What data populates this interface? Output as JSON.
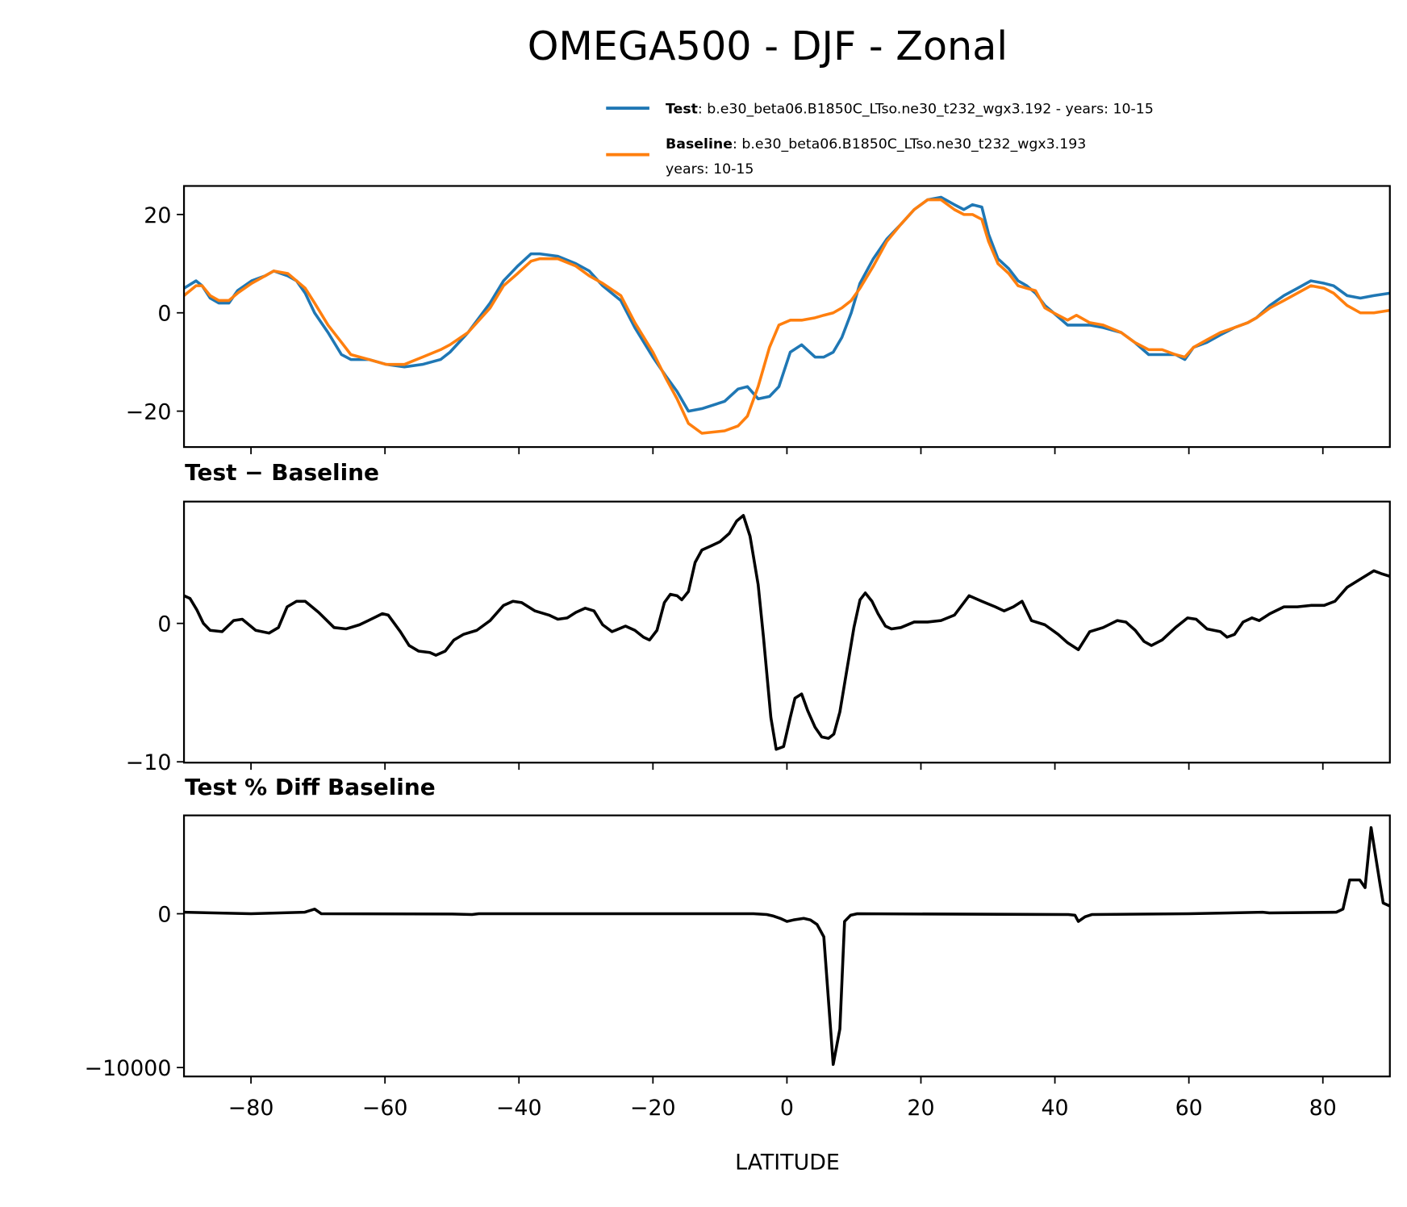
{
  "chart_data": [
    {
      "type": "line",
      "title": "OMEGA500 - DJF - Zonal",
      "xlim": [
        -90,
        90
      ],
      "ylim": [
        -27.3,
        25.8
      ],
      "yticks": [
        -20,
        0,
        20
      ],
      "xticks": [
        -80,
        -60,
        -40,
        -20,
        0,
        20,
        40,
        60,
        80
      ],
      "grid": false,
      "legend_placement": "top-right",
      "legend": [
        {
          "bold": "Test",
          "text": ": b.e30_beta06.B1850C_LTso.ne30_t232_wgx3.192 - years: 10-15",
          "color": "#1f77b4"
        },
        {
          "bold": "Baseline",
          "text": ": b.e30_beta06.B1850C_LTso.ne30_t232_wgx3.193",
          "text2": "years: 10-15",
          "color": "#ff7f0e"
        }
      ],
      "x": [
        -90,
        -88.2,
        -87.3,
        -86.1,
        -84.8,
        -83.3,
        -82,
        -79.9,
        -77.9,
        -76.6,
        -74.5,
        -73.2,
        -71.9,
        -70.5,
        -68.5,
        -66.5,
        -65.1,
        -62.4,
        -59.8,
        -57.1,
        -54.4,
        -51.7,
        -50.3,
        -47.6,
        -44.3,
        -42.3,
        -40.2,
        -38.2,
        -36.9,
        -34.2,
        -31.5,
        -29.5,
        -27.5,
        -24.8,
        -22.7,
        -20,
        -18,
        -16.4,
        -14.7,
        -12.7,
        -9.3,
        -7.3,
        -5.9,
        -4.3,
        -2.6,
        -1.2,
        0.5,
        2.2,
        4.2,
        5.5,
        6.9,
        8.2,
        9.6,
        10.9,
        12.9,
        14.9,
        17,
        19,
        21,
        23,
        25,
        26.4,
        27.7,
        29.1,
        30.1,
        31.5,
        33.1,
        34.5,
        35.8,
        37.1,
        38.5,
        39.8,
        41.9,
        43.2,
        45.2,
        47.2,
        49.9,
        51.9,
        54,
        56,
        58,
        59.4,
        60.7,
        62.7,
        64.7,
        66.8,
        68.8,
        70.1,
        72.1,
        74.2,
        76.2,
        78.2,
        80.2,
        81.6,
        83.6,
        85.6,
        87.6,
        90
      ],
      "series": [
        {
          "name": "Test",
          "color": "#1f77b4",
          "values": [
            5,
            6.5,
            5.5,
            3,
            2,
            2,
            4.5,
            6.5,
            7.5,
            8.5,
            7.5,
            6.5,
            4,
            0,
            -4,
            -8.5,
            -9.5,
            -9.5,
            -10.5,
            -11,
            -10.5,
            -9.5,
            -8,
            -4,
            2,
            6.5,
            9.5,
            12,
            12,
            11.5,
            10,
            8.5,
            5.5,
            2.5,
            -3,
            -9,
            -13,
            -16,
            -20,
            -19.5,
            -18,
            -15.5,
            -15,
            -17.5,
            -17,
            -15,
            -8,
            -6.5,
            -9,
            -9,
            -8,
            -5,
            0,
            6,
            11,
            15,
            18,
            21,
            23,
            23.5,
            22,
            21,
            22,
            21.5,
            16,
            11,
            9,
            6.5,
            5.5,
            4,
            1.5,
            0,
            -2.5,
            -2.5,
            -2.5,
            -3,
            -4,
            -6,
            -8.5,
            -8.5,
            -8.5,
            -9.5,
            -7,
            -6,
            -4.5,
            -3,
            -2,
            -1,
            1.5,
            3.5,
            5,
            6.5,
            6,
            5.5,
            3.5,
            3,
            3.5,
            4
          ]
        },
        {
          "name": "Baseline",
          "color": "#ff7f0e",
          "values": [
            3.5,
            5.5,
            5.5,
            3.5,
            2.5,
            2.5,
            4,
            6,
            7.5,
            8.5,
            8,
            6.5,
            5,
            2,
            -2.5,
            -6,
            -8.5,
            -9.5,
            -10.5,
            -10.5,
            -9,
            -7.5,
            -6.5,
            -4,
            1,
            5.5,
            8,
            10.5,
            11,
            11,
            9.5,
            7.5,
            6,
            3.5,
            -2,
            -8,
            -13.5,
            -17.5,
            -22.5,
            -24.5,
            -24,
            -23,
            -21,
            -15,
            -7,
            -2.5,
            -1.5,
            -1.5,
            -1,
            -0.5,
            0,
            1,
            2.5,
            5,
            9.5,
            14.5,
            18,
            21,
            23,
            23,
            21,
            20,
            20,
            19,
            14.5,
            10,
            8,
            5.5,
            5,
            4.5,
            1,
            0,
            -1.5,
            -0.5,
            -2,
            -2.5,
            -4,
            -6,
            -7.5,
            -7.5,
            -8.5,
            -9,
            -7,
            -5.5,
            -4,
            -3,
            -2,
            -1,
            1,
            2.5,
            4,
            5.5,
            5,
            4,
            1.5,
            0,
            0,
            0.5
          ]
        }
      ]
    },
    {
      "type": "line",
      "title": "Test − Baseline",
      "xlim": [
        -90,
        90
      ],
      "ylim": [
        -10.06,
        8.8
      ],
      "yticks": [
        -10,
        0
      ],
      "grid": false,
      "x": [
        -90,
        -89.1,
        -88.1,
        -87.1,
        -86.1,
        -84.3,
        -82.6,
        -81.3,
        -79.3,
        -77.3,
        -75.9,
        -74.6,
        -73.2,
        -71.9,
        -69.9,
        -67.6,
        -65.8,
        -63.8,
        -62.5,
        -60.4,
        -59.5,
        -57.7,
        -56.4,
        -55,
        -53.3,
        -52.4,
        -51,
        -49.7,
        -48.3,
        -46.3,
        -44.3,
        -42.3,
        -40.9,
        -39.6,
        -37.6,
        -35.5,
        -34.2,
        -32.8,
        -31.5,
        -30.1,
        -28.8,
        -27.5,
        -26.1,
        -24.1,
        -22.7,
        -21.4,
        -20.5,
        -19.4,
        -18.3,
        -17.4,
        -16.4,
        -15.7,
        -14.7,
        -13.7,
        -12.7,
        -11.3,
        -10,
        -8.6,
        -7.5,
        -6.5,
        -5.5,
        -4.3,
        -3.5,
        -2.4,
        -1.6,
        -0.5,
        0.5,
        1.2,
        2.2,
        3.1,
        4.2,
        5.2,
        6.2,
        7,
        7.9,
        8.9,
        10,
        10.9,
        11.7,
        12.7,
        13.6,
        14.7,
        15.6,
        17,
        19,
        21,
        23,
        25,
        27.2,
        29.1,
        31.1,
        32.4,
        33.8,
        35.1,
        36.5,
        38.5,
        40.5,
        41.9,
        43.5,
        45.2,
        47.2,
        49.3,
        50.6,
        52,
        53.3,
        54.4,
        56,
        58,
        59.8,
        61.1,
        62.7,
        64.7,
        65.7,
        66.8,
        68.1,
        69.4,
        70.5,
        72.1,
        74.2,
        76.2,
        78.2,
        80.2,
        81.8,
        83.6,
        85.6,
        87.6,
        88.7,
        90
      ],
      "values": [
        2,
        1.8,
        1,
        0,
        -0.5,
        -0.6,
        0.2,
        0.3,
        -0.5,
        -0.7,
        -0.3,
        1.2,
        1.6,
        1.6,
        0.8,
        -0.3,
        -0.4,
        -0.1,
        0.2,
        0.7,
        0.6,
        -0.6,
        -1.6,
        -2,
        -2.1,
        -2.3,
        -2,
        -1.2,
        -0.8,
        -0.5,
        0.2,
        1.3,
        1.6,
        1.5,
        0.9,
        0.6,
        0.3,
        0.4,
        0.8,
        1.1,
        0.9,
        -0.1,
        -0.6,
        -0.2,
        -0.5,
        -1,
        -1.2,
        -0.5,
        1.5,
        2.1,
        2,
        1.7,
        2.3,
        4.4,
        5.3,
        5.6,
        5.9,
        6.5,
        7.4,
        7.8,
        6.3,
        2.8,
        -1,
        -6.8,
        -9.1,
        -8.9,
        -6.8,
        -5.4,
        -5.1,
        -6.3,
        -7.5,
        -8.2,
        -8.3,
        -8,
        -6.4,
        -3.5,
        -0.3,
        1.7,
        2.2,
        1.6,
        0.7,
        -0.2,
        -0.4,
        -0.3,
        0.1,
        0.1,
        0.2,
        0.6,
        2,
        1.6,
        1.2,
        0.9,
        1.2,
        1.6,
        0.2,
        -0.1,
        -0.8,
        -1.4,
        -1.9,
        -0.6,
        -0.3,
        0.2,
        0.1,
        -0.5,
        -1.3,
        -1.6,
        -1.2,
        -0.3,
        0.4,
        0.3,
        -0.4,
        -0.6,
        -1,
        -0.8,
        0.1,
        0.4,
        0.2,
        0.7,
        1.2,
        1.2,
        1.3,
        1.3,
        1.6,
        2.6,
        3.2,
        3.8,
        3.6,
        3.4
      ]
    },
    {
      "type": "line",
      "title": "Test % Diff Baseline",
      "xlabel": "LATITUDE",
      "xlim": [
        -90,
        90
      ],
      "ylim": [
        -10580,
        6395
      ],
      "yticks": [
        -10000,
        0
      ],
      "xticks": [
        -80,
        -60,
        -40,
        -20,
        0,
        20,
        40,
        60,
        80
      ],
      "grid": false,
      "x": [
        -90,
        -80,
        -72,
        -70.5,
        -69.5,
        -50,
        -47,
        -46,
        -20,
        -5,
        -3,
        -2,
        -1,
        0,
        1,
        2.5,
        3.5,
        4.5,
        5.5,
        6.9,
        7.9,
        8.6,
        9.5,
        10.5,
        42,
        43,
        43.5,
        44.5,
        45.5,
        60,
        71,
        72,
        82,
        83,
        84,
        85.5,
        86.3,
        87.2,
        88.5,
        89,
        90
      ],
      "values": [
        100,
        0,
        100,
        300,
        0,
        -20,
        -50,
        0,
        0,
        0,
        -50,
        -150,
        -300,
        -500,
        -400,
        -300,
        -400,
        -700,
        -1500,
        -9800,
        -7500,
        -500,
        -100,
        0,
        -50,
        -100,
        -500,
        -200,
        -50,
        0,
        100,
        50,
        100,
        300,
        2200,
        2200,
        1700,
        5600,
        2000,
        700,
        500
      ]
    }
  ]
}
